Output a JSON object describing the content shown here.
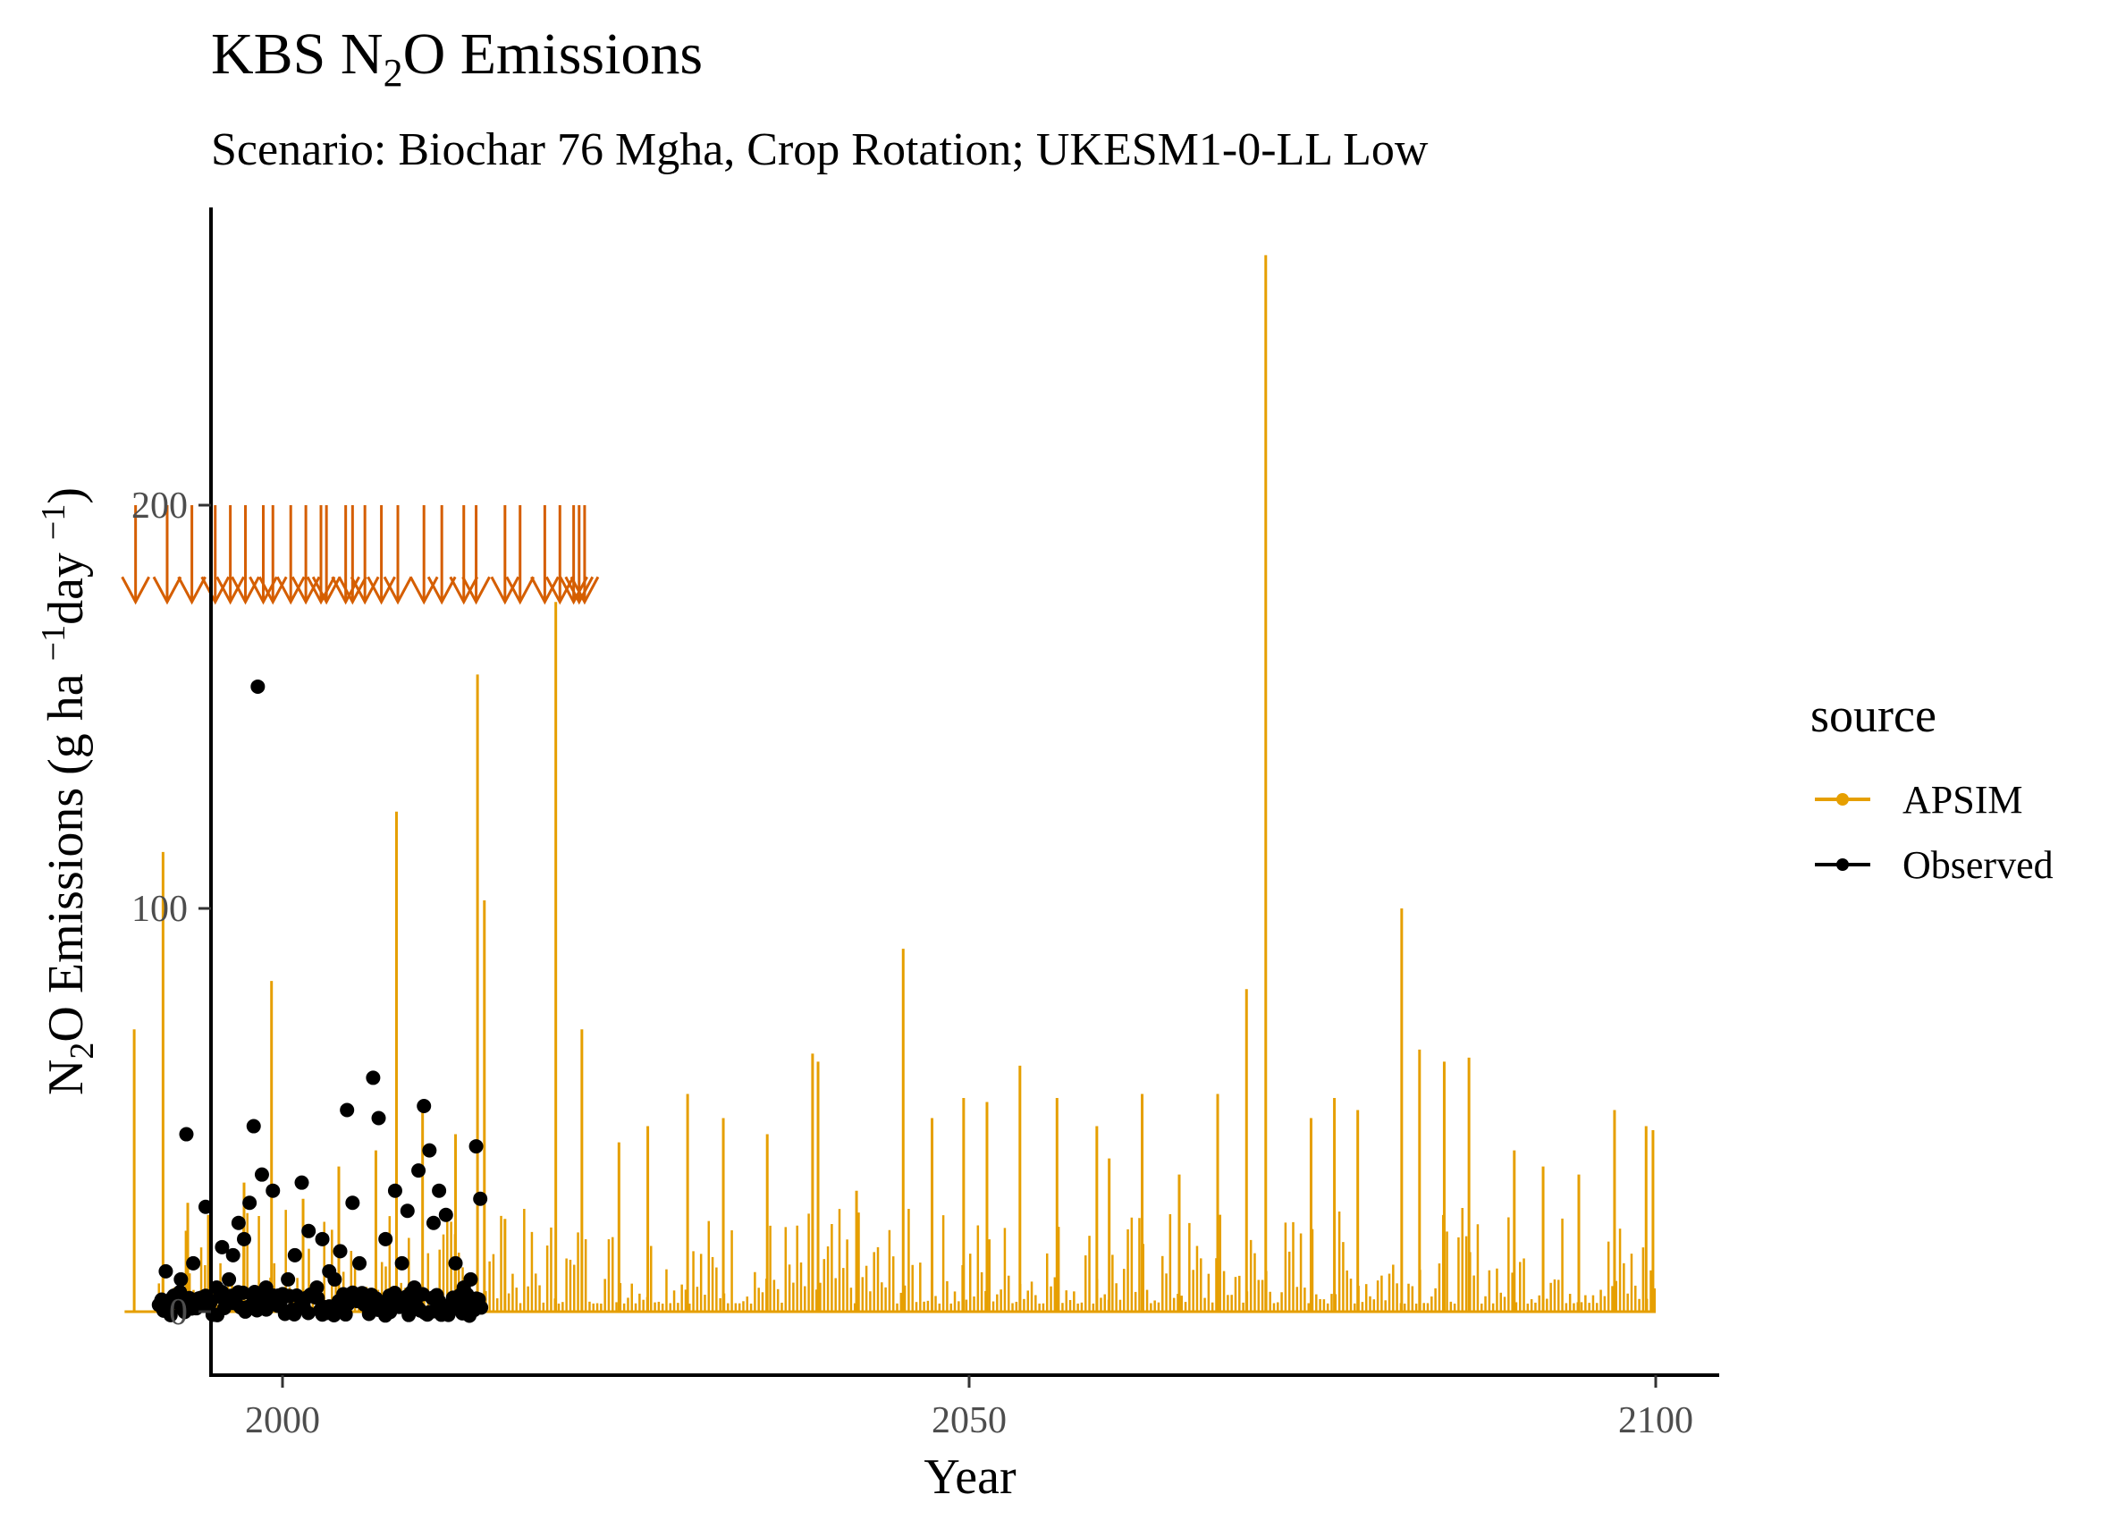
{
  "chart_data": {
    "type": "line",
    "title": "KBS N2O Emissions",
    "title_parts": {
      "pre": "KBS N",
      "sub": "2",
      "post": "O Emissions"
    },
    "subtitle": "Scenario: Biochar 76 Mgha, Crop Rotation; UKESM1-0-LL Low",
    "xlabel": "Year",
    "ylabel": "N2O Emissions (g ha-1day-1)",
    "ylabel_parts": {
      "a": "N",
      "sub": "2",
      "b": "O Emissions (g ha ",
      "sup1": "−1",
      "c": "day ",
      "sup2": "−1",
      "d": ")"
    },
    "xlim": [
      1983,
      2105
    ],
    "ylim": [
      -15,
      275
    ],
    "x_ticks": [
      2000,
      2050,
      2100
    ],
    "x_tick_labels": [
      "2000",
      "2050",
      "2100"
    ],
    "y_ticks": [
      0,
      100,
      200
    ],
    "y_tick_labels": [
      "0",
      "100",
      "200"
    ],
    "grid": false,
    "legend": {
      "title": "source",
      "placement": "right",
      "entries": [
        {
          "label": "APSIM",
          "color": "#E69F00"
        },
        {
          "label": "Observed",
          "color": "#000000"
        }
      ]
    },
    "colors": {
      "apsim": "#E69F00",
      "observed": "#000000",
      "fertilizer_arrows": "#D55E00"
    },
    "series": [
      {
        "name": "APSIM",
        "kind": "spike-line",
        "x": [
          1989.2,
          1991.3,
          1993.1,
          1994.6,
          1997.2,
          1999.2,
          2001.5,
          2004.1,
          2006.8,
          2008.3,
          2010.2,
          2012.6,
          2014.2,
          2014.7,
          2016.2,
          2019.9,
          2021.8,
          2024.5,
          2026.6,
          2029.5,
          2032.1,
          2035.3,
          2038.6,
          2039.0,
          2041.8,
          2045.2,
          2047.3,
          2049.6,
          2051.3,
          2053.7,
          2056.4,
          2059.3,
          2060.2,
          2062.6,
          2065.3,
          2068.1,
          2070.2,
          2071.6,
          2074.9,
          2076.6,
          2078.3,
          2081.5,
          2082.8,
          2084.6,
          2086.4,
          2089.7,
          2091.8,
          2094.4,
          2097.0,
          2099.3,
          2099.8
        ],
        "values": [
          70,
          114,
          27,
          24,
          32,
          82,
          28,
          36,
          40,
          124,
          52,
          44,
          158,
          102,
          23,
          176,
          70,
          42,
          46,
          54,
          48,
          44,
          64,
          62,
          30,
          90,
          48,
          53,
          52,
          61,
          53,
          46,
          38,
          54,
          34,
          54,
          80,
          262,
          48,
          53,
          50,
          100,
          65,
          62,
          63,
          40,
          36,
          34,
          50,
          46,
          45
        ]
      },
      {
        "name": "Observed",
        "kind": "scatter",
        "x": [
          1991.2,
          1991.5,
          1992.1,
          1992.6,
          1993.0,
          1993.5,
          1994.4,
          1995.2,
          1995.6,
          1996.1,
          1996.4,
          1996.8,
          1997.2,
          1997.6,
          1997.9,
          1998.2,
          1998.5,
          1998.8,
          1999.3,
          1999.7,
          2000.4,
          2000.9,
          2001.4,
          2001.9,
          2002.5,
          2002.9,
          2003.4,
          2003.8,
          2004.2,
          2004.7,
          2005.1,
          2005.6,
          2006.1,
          2006.6,
          2007.0,
          2007.5,
          2007.8,
          2008.2,
          2008.7,
          2009.1,
          2009.6,
          2009.9,
          2010.3,
          2010.7,
          2011.0,
          2011.4,
          2011.9,
          2012.6,
          2013.2,
          2013.7,
          2014.1,
          2014.4
        ],
        "values": [
          3,
          10,
          4,
          8,
          44,
          12,
          26,
          6,
          16,
          8,
          14,
          22,
          18,
          27,
          46,
          155,
          34,
          6,
          30,
          4,
          8,
          14,
          32,
          20,
          6,
          18,
          10,
          8,
          15,
          50,
          27,
          12,
          2,
          58,
          48,
          18,
          4,
          30,
          12,
          25,
          6,
          35,
          51,
          40,
          22,
          30,
          24,
          12,
          6,
          8,
          41,
          28
        ]
      }
    ],
    "fertilizer_events": {
      "marker": "arrow-down",
      "top": 200,
      "bottom": 176,
      "x": [
        1989.3,
        1991.6,
        1993.4,
        1995.1,
        1996.2,
        1997.3,
        1998.6,
        1999.3,
        2000.6,
        2001.7,
        2002.8,
        2003.2,
        2004.6,
        2005.1,
        2006.0,
        2007.2,
        2008.4,
        2010.3,
        2011.6,
        2013.2,
        2014.1,
        2016.2,
        2017.3,
        2019.1,
        2020.2,
        2021.2,
        2021.6,
        2022.0
      ]
    }
  }
}
